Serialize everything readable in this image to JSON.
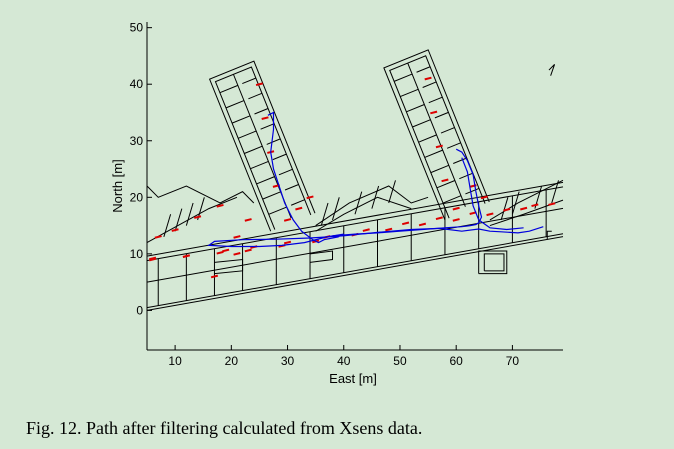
{
  "caption": "Fig. 12. Path after filtering calculated from Xsens data.",
  "colors": {
    "background": "#d5e8d5",
    "walls": "#000000",
    "doors": "#dd0000",
    "path": "#0000dd"
  },
  "chart_data": {
    "type": "line",
    "title": "",
    "xlabel": "East [m]",
    "ylabel": "North [m]",
    "xlim": [
      5,
      79
    ],
    "ylim": [
      -7,
      51
    ],
    "xticks": [
      "10",
      "20",
      "30",
      "40",
      "50",
      "60",
      "70"
    ],
    "yticks": [
      "0",
      "10",
      "20",
      "30",
      "40",
      "50"
    ],
    "grid": false,
    "series": [
      {
        "color": "#0000dd",
        "x": [
          26.5,
          27.5,
          27.5,
          27.0,
          27.5,
          28.5,
          29.5,
          31.0,
          32.5,
          34.5,
          35.5,
          36.5,
          39.0,
          40.0,
          37.0,
          33.0,
          29.0,
          25.0,
          20.0,
          16.0,
          17.0,
          22.0,
          28.0,
          34.0,
          40.0,
          46.0,
          52.0,
          57.0,
          61.0,
          64.0,
          66.0,
          68.0,
          71.0,
          73.0,
          75.5
        ],
        "y": [
          34.5,
          35.0,
          32.0,
          28.0,
          25.0,
          22.0,
          19.0,
          16.0,
          14.0,
          12.5,
          12.0,
          12.5,
          13.0,
          13.5,
          13.0,
          12.0,
          11.5,
          11.3,
          11.3,
          11.5,
          12.2,
          12.5,
          12.6,
          12.8,
          13.2,
          13.8,
          14.3,
          14.5,
          14.0,
          14.4,
          14.0,
          13.9,
          13.7,
          14.0,
          14.8
        ]
      },
      {
        "color": "#0000dd",
        "x": [
          60.0,
          61.0,
          62.0,
          63.0,
          63.5,
          64.0,
          64.5,
          64.0,
          63.5,
          62.5,
          61.0,
          58.0,
          54.0,
          50.0,
          46.0,
          42.0,
          38.0
        ],
        "y": [
          28.5,
          28.0,
          26.5,
          24.0,
          21.0,
          18.5,
          16.5,
          15.5,
          15.2,
          15.0,
          14.8,
          14.6,
          14.3,
          14.0,
          13.7,
          13.5,
          13.2
        ]
      },
      {
        "color": "#0000dd",
        "x": [
          61.0,
          62.0,
          62.5,
          63.0,
          64.0,
          66.0,
          69.0,
          72.0
        ],
        "y": [
          27.0,
          24.5,
          21.5,
          18.5,
          16.0,
          14.6,
          14.3,
          14.6
        ]
      }
    ]
  }
}
